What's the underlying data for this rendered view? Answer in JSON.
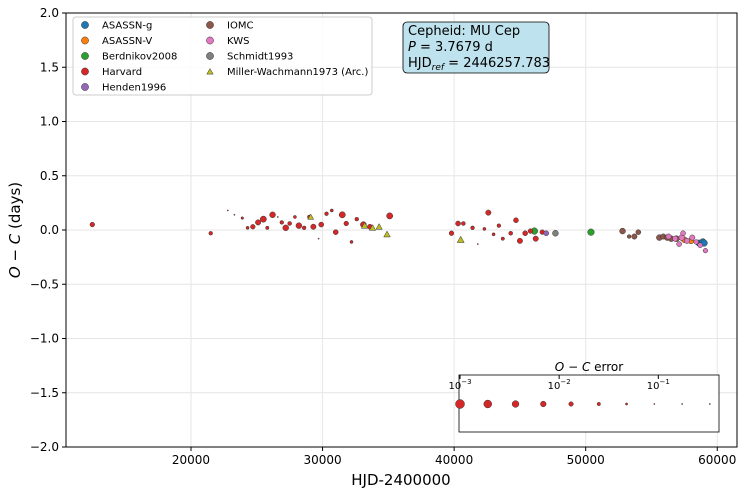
{
  "chart_data": {
    "type": "scatter",
    "title": "",
    "xlabel": "HJD-2400000",
    "ylabel": "O − C (days)",
    "xlim": [
      10500,
      61500
    ],
    "ylim": [
      -2.0,
      2.0
    ],
    "xticks": [
      20000,
      30000,
      40000,
      50000,
      60000
    ],
    "yticks": [
      -2.0,
      -1.5,
      -1.0,
      -0.5,
      0.0,
      0.5,
      1.0,
      1.5,
      2.0
    ],
    "grid": true,
    "legend_position": "top-left",
    "info_box": {
      "line1": "Cepheid: MU Cep",
      "line2": "P = 3.7679 d",
      "line3": "HJD_ref = 2446257.783"
    },
    "error_legend": {
      "title": "O − C error",
      "scale": "log",
      "ticks": [
        "10^-3",
        "10^-2",
        "10^-1"
      ],
      "range": [
        0.001,
        0.4
      ]
    },
    "series": [
      {
        "name": "ASASSN-g",
        "color": "#1f77b4",
        "marker": "circle",
        "points": [
          [
            58600,
            -0.12,
            0.005
          ],
          [
            58900,
            -0.11,
            0.004
          ],
          [
            59000,
            -0.12,
            0.004
          ]
        ]
      },
      {
        "name": "ASASSN-V",
        "color": "#ff7f0e",
        "marker": "circle",
        "points": [
          [
            57500,
            -0.09,
            0.006
          ],
          [
            58000,
            -0.1,
            0.006
          ]
        ]
      },
      {
        "name": "Berdnikov2008",
        "color": "#2ca02c",
        "marker": "circle",
        "points": [
          [
            46100,
            -0.01,
            0.004
          ],
          [
            50400,
            -0.02,
            0.004
          ]
        ]
      },
      {
        "name": "Harvard",
        "color": "#d62728",
        "marker": "circle",
        "points": [
          [
            12500,
            0.05,
            0.012
          ],
          [
            21500,
            -0.03,
            0.02
          ],
          [
            22800,
            0.18,
            0.3
          ],
          [
            23300,
            0.14,
            0.4
          ],
          [
            23900,
            0.11,
            0.04
          ],
          [
            24300,
            0.02,
            0.03
          ],
          [
            24700,
            0.03,
            0.012
          ],
          [
            25100,
            0.07,
            0.008
          ],
          [
            25500,
            0.1,
            0.005
          ],
          [
            25800,
            0.02,
            0.025
          ],
          [
            26200,
            0.14,
            0.006
          ],
          [
            26600,
            0.12,
            0.2
          ],
          [
            26900,
            0.07,
            0.02
          ],
          [
            27200,
            0.02,
            0.006
          ],
          [
            27500,
            0.06,
            0.018
          ],
          [
            27900,
            0.12,
            0.03
          ],
          [
            28200,
            0.04,
            0.006
          ],
          [
            28600,
            0.02,
            0.02
          ],
          [
            29000,
            0.12,
            0.018
          ],
          [
            29300,
            0.03,
            0.008
          ],
          [
            29700,
            -0.08,
            0.3
          ],
          [
            29900,
            0.05,
            0.01
          ],
          [
            30300,
            0.15,
            0.02
          ],
          [
            30700,
            0.18,
            0.03
          ],
          [
            31000,
            -0.02,
            0.01
          ],
          [
            31500,
            0.14,
            0.005
          ],
          [
            31800,
            0.06,
            0.012
          ],
          [
            32200,
            -0.11,
            0.03
          ],
          [
            32600,
            0.1,
            0.02
          ],
          [
            33100,
            0.05,
            0.006
          ],
          [
            33600,
            0.03,
            0.01
          ],
          [
            35100,
            0.13,
            0.005
          ],
          [
            39800,
            -0.03,
            0.012
          ],
          [
            40300,
            0.06,
            0.01
          ],
          [
            40700,
            0.06,
            0.018
          ],
          [
            41400,
            0.02,
            0.02
          ],
          [
            41800,
            -0.13,
            0.4
          ],
          [
            42300,
            0.01,
            0.03
          ],
          [
            42600,
            0.16,
            0.008
          ],
          [
            43000,
            -0.04,
            0.03
          ],
          [
            43400,
            0.04,
            0.02
          ],
          [
            43700,
            -0.08,
            0.025
          ],
          [
            44300,
            -0.03,
            0.018
          ],
          [
            44700,
            0.09,
            0.01
          ],
          [
            45000,
            -0.1,
            0.008
          ],
          [
            45400,
            -0.03,
            0.01
          ],
          [
            45800,
            -0.01,
            0.012
          ],
          [
            46200,
            -0.08,
            0.008
          ],
          [
            46700,
            -0.02,
            0.012
          ]
        ]
      },
      {
        "name": "Henden1996",
        "color": "#9467bd",
        "marker": "circle",
        "points": [
          [
            47000,
            -0.03,
            0.01
          ]
        ]
      },
      {
        "name": "IOMC",
        "color": "#8c564b",
        "marker": "circle",
        "points": [
          [
            52800,
            -0.01,
            0.006
          ],
          [
            53300,
            -0.06,
            0.02
          ],
          [
            53700,
            -0.06,
            0.008
          ],
          [
            54000,
            -0.02,
            0.01
          ],
          [
            55600,
            -0.07,
            0.006
          ],
          [
            55900,
            -0.06,
            0.008
          ],
          [
            56200,
            -0.07,
            0.006
          ],
          [
            56500,
            -0.08,
            0.006
          ],
          [
            56900,
            -0.08,
            0.006
          ]
        ]
      },
      {
        "name": "KWS",
        "color": "#e377c2",
        "marker": "circle",
        "points": [
          [
            56300,
            -0.06,
            0.008
          ],
          [
            56800,
            -0.08,
            0.008
          ],
          [
            57100,
            -0.13,
            0.01
          ],
          [
            57300,
            -0.07,
            0.006
          ],
          [
            57400,
            -0.03,
            0.01
          ],
          [
            57700,
            -0.1,
            0.008
          ],
          [
            58100,
            -0.07,
            0.008
          ],
          [
            58400,
            -0.11,
            0.012
          ],
          [
            58700,
            -0.14,
            0.01
          ],
          [
            59100,
            -0.19,
            0.012
          ]
        ]
      },
      {
        "name": "Schmidt1993",
        "color": "#7f7f7f",
        "marker": "circle",
        "points": [
          [
            47700,
            -0.03,
            0.006
          ]
        ]
      },
      {
        "name": "Miller-Wachmann1973 (Arc.)",
        "color": "#bcbd22",
        "marker": "triangle",
        "points": [
          [
            29100,
            0.12,
            0.015
          ],
          [
            33200,
            0.04,
            0.01
          ],
          [
            33800,
            0.02,
            0.012
          ],
          [
            34300,
            0.03,
            0.012
          ],
          [
            34900,
            -0.04,
            0.01
          ],
          [
            40500,
            -0.09,
            0.008
          ]
        ]
      }
    ]
  }
}
